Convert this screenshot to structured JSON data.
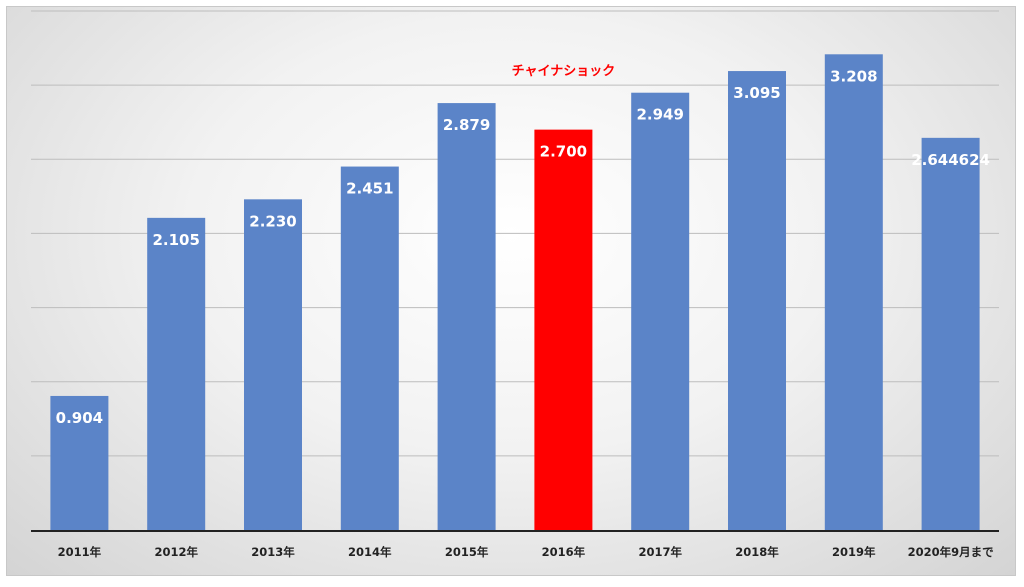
{
  "chart_data": {
    "type": "bar",
    "categories": [
      "2011年",
      "2012年",
      "2013年",
      "2014年",
      "2015年",
      "2016年",
      "2017年",
      "2018年",
      "2019年",
      "2020年9月まで"
    ],
    "values": [
      0.904,
      2.105,
      2.23,
      2.451,
      2.879,
      2.7,
      2.949,
      3.095,
      3.208,
      2.644624
    ],
    "data_labels": [
      "0.904",
      "2.105",
      "2.230",
      "2.451",
      "2.879",
      "2.700",
      "2.949",
      "3.095",
      "3.208",
      "2.644624"
    ],
    "title": "",
    "xlabel": "",
    "ylabel": "",
    "ylim": [
      0,
      3.5
    ],
    "grid": true,
    "bar_color": "#5b84c8",
    "highlight": {
      "category": "2016年",
      "color": "#ff0000"
    },
    "annotation": {
      "text": "チャイナショック",
      "category": "2016年",
      "color": "#ff0000"
    }
  }
}
